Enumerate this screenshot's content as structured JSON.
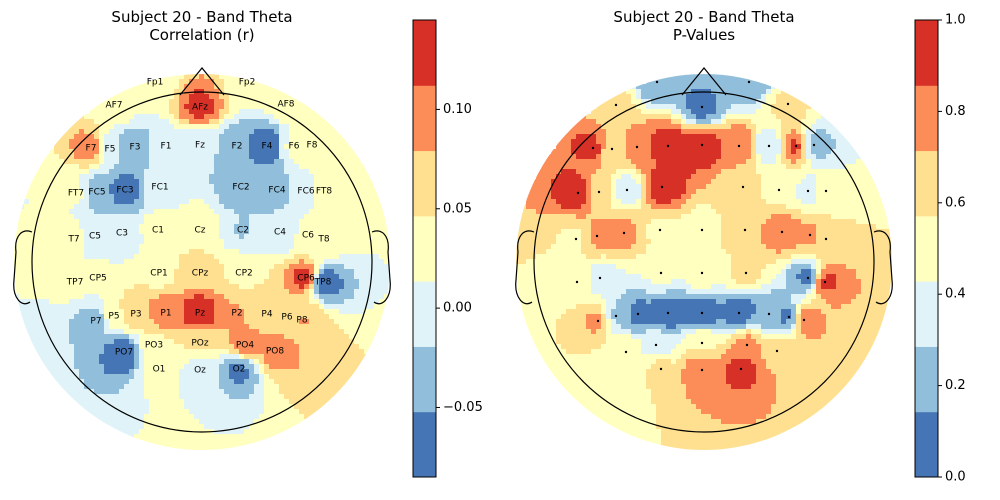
{
  "colors": {
    "levels": [
      "#4575b4",
      "#91bfdb",
      "#e0f3f8",
      "#ffffbf",
      "#fee090",
      "#fc8d59",
      "#d73027"
    ],
    "outline": "#000000"
  },
  "chart_data": [
    {
      "type": "heatmap",
      "subtype": "eeg-topomap",
      "title": "Subject 20 - Band Theta",
      "subtitle": "Correlation (r)",
      "colorbar": {
        "ticks": [
          0.1,
          0.05,
          0.0,
          -0.05
        ],
        "tick_labels": [
          "0.10",
          "0.05",
          "0.00",
          "−0.05"
        ],
        "range": [
          -0.085,
          0.145
        ]
      },
      "channels": [
        {
          "name": "Fp1",
          "value": 0.02
        },
        {
          "name": "Fp2",
          "value": 0.03
        },
        {
          "name": "AF7",
          "value": 0.04
        },
        {
          "name": "AFz",
          "value": 0.12
        },
        {
          "name": "AF8",
          "value": 0.03
        },
        {
          "name": "F7",
          "value": 0.1
        },
        {
          "name": "F5",
          "value": -0.02
        },
        {
          "name": "F3",
          "value": -0.04
        },
        {
          "name": "F1",
          "value": 0.0
        },
        {
          "name": "Fz",
          "value": -0.01
        },
        {
          "name": "F2",
          "value": -0.04
        },
        {
          "name": "F4",
          "value": -0.08
        },
        {
          "name": "F6",
          "value": 0.02
        },
        {
          "name": "F8",
          "value": 0.04
        },
        {
          "name": "FT7",
          "value": 0.02
        },
        {
          "name": "FC5",
          "value": -0.04
        },
        {
          "name": "FC3",
          "value": -0.07
        },
        {
          "name": "FC1",
          "value": 0.0
        },
        {
          "name": "FC2",
          "value": -0.04
        },
        {
          "name": "FC4",
          "value": -0.04
        },
        {
          "name": "FC6",
          "value": 0.01
        },
        {
          "name": "FT8",
          "value": 0.02
        },
        {
          "name": "T7",
          "value": 0.03
        },
        {
          "name": "C5",
          "value": -0.01
        },
        {
          "name": "C3",
          "value": -0.01
        },
        {
          "name": "C1",
          "value": 0.03
        },
        {
          "name": "Cz",
          "value": 0.04
        },
        {
          "name": "C2",
          "value": -0.02
        },
        {
          "name": "C4",
          "value": -0.01
        },
        {
          "name": "C6",
          "value": 0.02
        },
        {
          "name": "T8",
          "value": 0.03
        },
        {
          "name": "TP7",
          "value": 0.02
        },
        {
          "name": "CP5",
          "value": 0.02
        },
        {
          "name": "CP1",
          "value": 0.04
        },
        {
          "name": "CPz",
          "value": 0.06
        },
        {
          "name": "CP2",
          "value": 0.04
        },
        {
          "name": "CP6",
          "value": 0.13
        },
        {
          "name": "TP8",
          "value": -0.08
        },
        {
          "name": "P7",
          "value": -0.04
        },
        {
          "name": "P5",
          "value": 0.04
        },
        {
          "name": "P3",
          "value": 0.08
        },
        {
          "name": "P1",
          "value": 0.1
        },
        {
          "name": "Pz",
          "value": 0.14
        },
        {
          "name": "P2",
          "value": 0.08
        },
        {
          "name": "P4",
          "value": 0.06
        },
        {
          "name": "P6",
          "value": 0.07
        },
        {
          "name": "P8",
          "value": 0.08
        },
        {
          "name": "PO7",
          "value": -0.08
        },
        {
          "name": "PO3",
          "value": 0.04
        },
        {
          "name": "POz",
          "value": 0.05
        },
        {
          "name": "PO4",
          "value": 0.1
        },
        {
          "name": "PO8",
          "value": 0.09
        },
        {
          "name": "O1",
          "value": 0.02
        },
        {
          "name": "Oz",
          "value": 0.0
        },
        {
          "name": "O2",
          "value": -0.06
        }
      ]
    },
    {
      "type": "heatmap",
      "subtype": "eeg-topomap",
      "title": "Subject 20 - Band Theta",
      "subtitle": "P-Values",
      "colorbar": {
        "ticks": [
          1.0,
          0.8,
          0.6,
          0.4,
          0.2,
          0.0
        ],
        "tick_labels": [
          "1.0",
          "0.8",
          "0.6",
          "0.4",
          "0.2",
          "0.0"
        ],
        "range": [
          0.0,
          1.0
        ]
      },
      "channels": [
        {
          "name": "Fp1",
          "value": 0.15
        },
        {
          "name": "Fp2",
          "value": 0.15
        },
        {
          "name": "AF7",
          "value": 0.6
        },
        {
          "name": "AFz",
          "value": 0.1
        },
        {
          "name": "AF8",
          "value": 0.6
        },
        {
          "name": "F7",
          "value": 0.9
        },
        {
          "name": "F5",
          "value": 0.6
        },
        {
          "name": "F3",
          "value": 0.8
        },
        {
          "name": "F1",
          "value": 0.95
        },
        {
          "name": "Fz",
          "value": 0.95
        },
        {
          "name": "F2",
          "value": 0.85
        },
        {
          "name": "F4",
          "value": 0.3
        },
        {
          "name": "F6",
          "value": 0.9
        },
        {
          "name": "F8",
          "value": 0.2
        },
        {
          "name": "FT7",
          "value": 0.95
        },
        {
          "name": "FC5",
          "value": 0.6
        },
        {
          "name": "FC3",
          "value": 0.35
        },
        {
          "name": "FC1",
          "value": 0.95
        },
        {
          "name": "FC2",
          "value": 0.6
        },
        {
          "name": "FC4",
          "value": 0.55
        },
        {
          "name": "FC6",
          "value": 0.4
        },
        {
          "name": "FT8",
          "value": 0.45
        },
        {
          "name": "T7",
          "value": 0.55
        },
        {
          "name": "C5",
          "value": 0.75
        },
        {
          "name": "C3",
          "value": 0.75
        },
        {
          "name": "C1",
          "value": 0.55
        },
        {
          "name": "Cz",
          "value": 0.5
        },
        {
          "name": "C2",
          "value": 0.7
        },
        {
          "name": "C4",
          "value": 0.8
        },
        {
          "name": "C6",
          "value": 0.75
        },
        {
          "name": "T8",
          "value": 0.6
        },
        {
          "name": "TP7",
          "value": 0.55
        },
        {
          "name": "CP5",
          "value": 0.35
        },
        {
          "name": "CP1",
          "value": 0.45
        },
        {
          "name": "CPz",
          "value": 0.5
        },
        {
          "name": "CP2",
          "value": 0.6
        },
        {
          "name": "CP6",
          "value": 0.1
        },
        {
          "name": "TP8",
          "value": 0.9
        },
        {
          "name": "P7",
          "value": 0.75
        },
        {
          "name": "P5",
          "value": 0.25
        },
        {
          "name": "P3",
          "value": 0.1
        },
        {
          "name": "P1",
          "value": 0.05
        },
        {
          "name": "Pz",
          "value": 0.05
        },
        {
          "name": "P2",
          "value": 0.05
        },
        {
          "name": "P4",
          "value": 0.15
        },
        {
          "name": "P6",
          "value": 0.1
        },
        {
          "name": "P8",
          "value": 0.85
        },
        {
          "name": "PO7",
          "value": 0.55
        },
        {
          "name": "PO3",
          "value": 0.35
        },
        {
          "name": "POz",
          "value": 0.55
        },
        {
          "name": "PO4",
          "value": 0.75
        },
        {
          "name": "PO8",
          "value": 0.7
        },
        {
          "name": "O1",
          "value": 0.6
        },
        {
          "name": "Oz",
          "value": 0.85
        },
        {
          "name": "O2",
          "value": 0.9
        }
      ]
    }
  ]
}
